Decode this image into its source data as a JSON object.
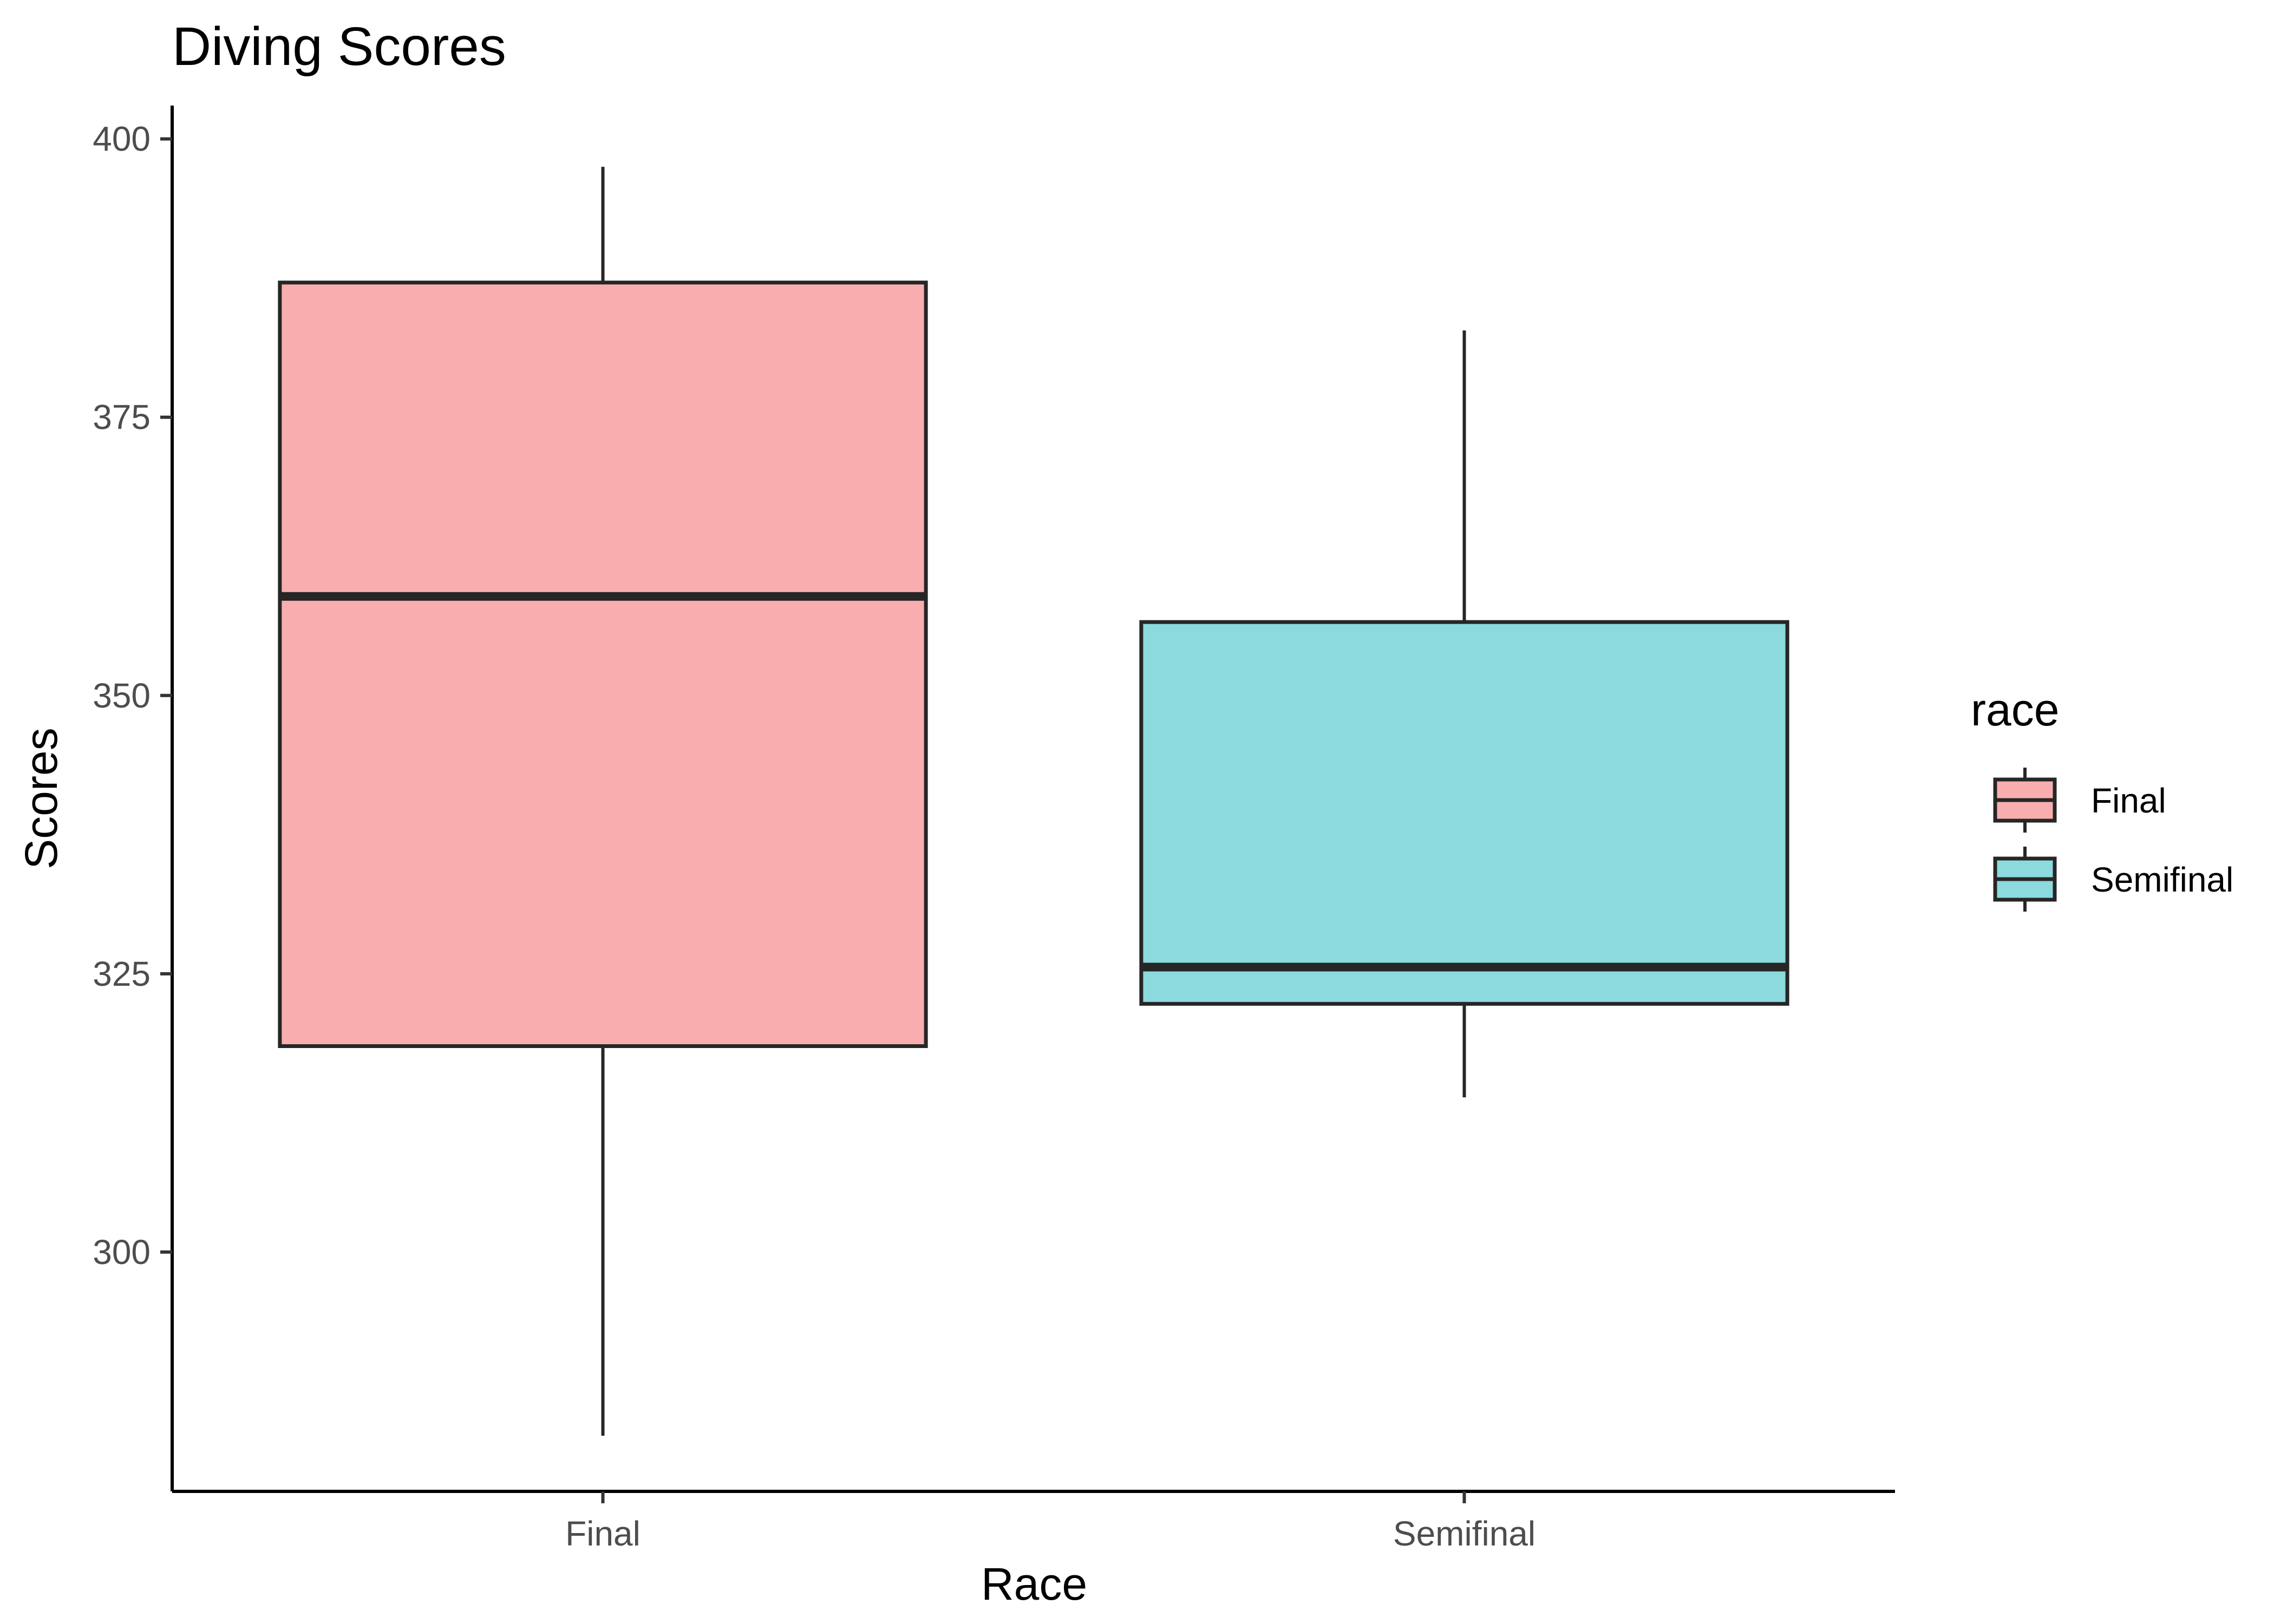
{
  "chart_data": {
    "type": "boxplot",
    "title": "Diving Scores",
    "xlabel": "Race",
    "ylabel": "Scores",
    "categories": [
      "Final",
      "Semifinal"
    ],
    "y_ticks": [
      300,
      325,
      350,
      375,
      400
    ],
    "ylim": [
      278.5,
      403
    ],
    "grid": false,
    "legend": {
      "title": "race",
      "placement": "right",
      "entries": [
        "Final",
        "Semifinal"
      ]
    },
    "colors": {
      "Final": "#F8AEAF",
      "Semifinal": "#8CDADD",
      "outline": "#262626"
    },
    "boxes": [
      {
        "category": "Final",
        "whisker_low": 283.5,
        "q1": 318.5,
        "median": 358.9,
        "q3": 387.1,
        "whisker_high": 397.5
      },
      {
        "category": "Semifinal",
        "whisker_low": 313.9,
        "q1": 322.3,
        "median": 325.6,
        "q3": 356.6,
        "whisker_high": 382.8
      }
    ]
  }
}
